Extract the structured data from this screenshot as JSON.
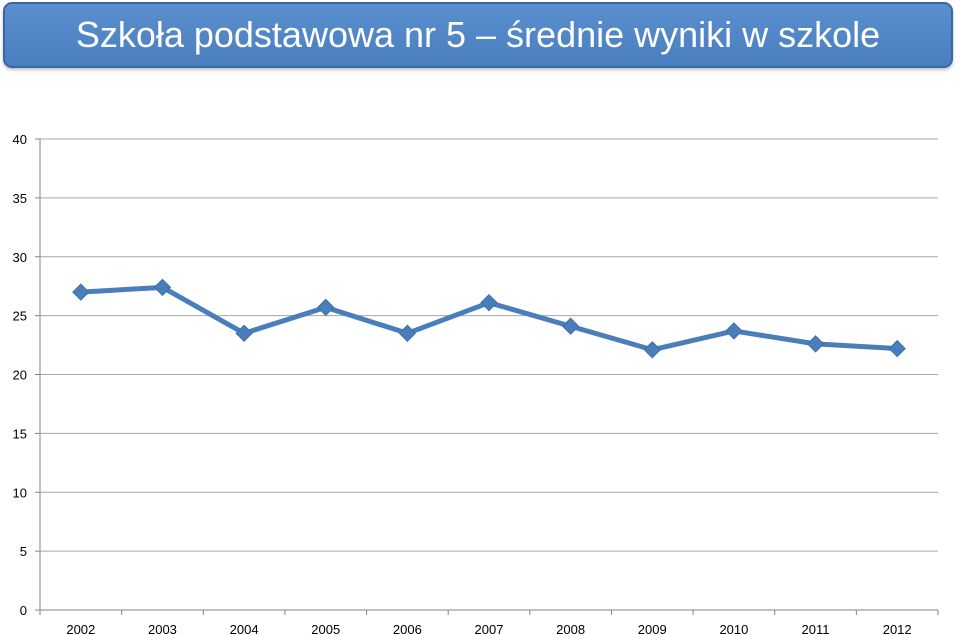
{
  "title": "Szkoła podstawowa nr 5 – średnie wyniki w szkole",
  "chart_data": {
    "type": "line",
    "title": "Szkoła podstawowa nr 5 – średnie wyniki w szkole",
    "xlabel": "",
    "ylabel": "",
    "categories": [
      "2002",
      "2003",
      "2004",
      "2005",
      "2006",
      "2007",
      "2008",
      "2009",
      "2010",
      "2011",
      "2012"
    ],
    "series": [
      {
        "values": [
          27.0,
          27.4,
          23.5,
          25.7,
          23.5,
          26.1,
          24.1,
          22.1,
          23.7,
          22.6,
          22.2
        ]
      }
    ],
    "ylim": [
      0,
      40
    ],
    "yticks": [
      0,
      5,
      10,
      15,
      20,
      25,
      30,
      35,
      40
    ],
    "grid": true,
    "legend": "none",
    "colors": {
      "line": "#4a7ebb",
      "grid": "#a6a6a6",
      "axis": "#868686"
    }
  }
}
